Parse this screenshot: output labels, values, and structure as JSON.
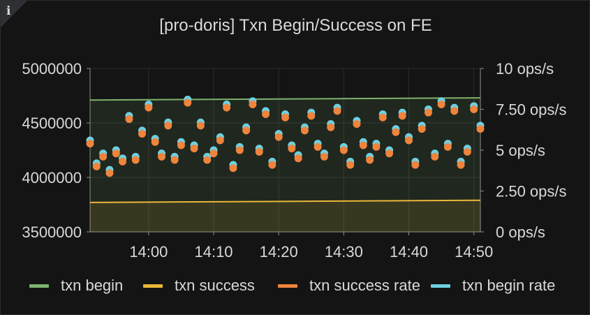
{
  "panel": {
    "title": "[pro-doris] Txn Begin/Success on FE",
    "info_icon": "info-icon"
  },
  "chart_data": {
    "type": "line",
    "title": "[pro-doris] Txn Begin/Success on FE",
    "x_ticks": [
      "14:00",
      "14:10",
      "14:20",
      "14:30",
      "14:40",
      "14:50"
    ],
    "x_range": [
      "13:51",
      "14:51"
    ],
    "y_left": {
      "ticks": [
        "5000000",
        "4500000",
        "4000000",
        "3500000"
      ],
      "range": [
        3500000,
        5000000
      ]
    },
    "y_right": {
      "ticks": [
        "10 ops/s",
        "7.50 ops/s",
        "5 ops/s",
        "2.50 ops/s",
        "0 ops/s"
      ],
      "range": [
        0,
        10
      ]
    },
    "grid": true,
    "legend_placement": "bottom",
    "series": [
      {
        "name": "txn begin",
        "axis": "left",
        "style": "line",
        "color": "#7eb26d",
        "x": [
          "13:51",
          "14:51"
        ],
        "values": [
          4710000,
          4730000
        ]
      },
      {
        "name": "txn success",
        "axis": "left",
        "style": "line",
        "color": "#eab839",
        "x": [
          "13:51",
          "14:51"
        ],
        "values": [
          3770000,
          3790000
        ]
      },
      {
        "name": "txn success rate",
        "axis": "right",
        "style": "points",
        "color": "#ef843c",
        "x": [
          "13:51",
          "13:52",
          "13:53",
          "13:54",
          "13:55",
          "13:56",
          "13:57",
          "13:58",
          "13:59",
          "14:00",
          "14:01",
          "14:02",
          "14:03",
          "14:04",
          "14:05",
          "14:06",
          "14:07",
          "14:08",
          "14:09",
          "14:10",
          "14:11",
          "14:12",
          "14:13",
          "14:14",
          "14:15",
          "14:16",
          "14:17",
          "14:18",
          "14:19",
          "14:20",
          "14:21",
          "14:22",
          "14:23",
          "14:24",
          "14:25",
          "14:26",
          "14:27",
          "14:28",
          "14:29",
          "14:30",
          "14:31",
          "14:32",
          "14:33",
          "14:34",
          "14:35",
          "14:36",
          "14:37",
          "14:38",
          "14:39",
          "14:40",
          "14:41",
          "14:42",
          "14:43",
          "14:44",
          "14:45",
          "14:46",
          "14:47",
          "14:48",
          "14:49",
          "14:50",
          "14:51"
        ],
        "values": [
          5.4,
          4.0,
          4.6,
          3.6,
          4.8,
          4.3,
          6.9,
          4.4,
          6.0,
          7.6,
          5.5,
          4.6,
          6.5,
          4.4,
          5.3,
          7.9,
          5.1,
          6.5,
          4.4,
          4.8,
          5.6,
          7.6,
          3.9,
          5.0,
          6.2,
          7.8,
          4.9,
          7.2,
          4.1,
          5.8,
          7.0,
          5.1,
          4.5,
          6.2,
          7.1,
          5.2,
          4.6,
          6.4,
          7.4,
          5.0,
          4.1,
          6.6,
          5.3,
          4.4,
          5.2,
          7.0,
          4.8,
          6.1,
          7.1,
          5.6,
          4.1,
          6.3,
          7.3,
          4.6,
          7.8,
          5.2,
          7.4,
          4.1,
          4.9,
          7.5,
          6.3
        ]
      },
      {
        "name": "txn begin rate",
        "axis": "right",
        "style": "points",
        "color": "#6ed0e0",
        "x": [
          "13:51",
          "13:52",
          "13:53",
          "13:54",
          "13:55",
          "13:56",
          "13:57",
          "13:58",
          "13:59",
          "14:00",
          "14:01",
          "14:02",
          "14:03",
          "14:04",
          "14:05",
          "14:06",
          "14:07",
          "14:08",
          "14:09",
          "14:10",
          "14:11",
          "14:12",
          "14:13",
          "14:14",
          "14:15",
          "14:16",
          "14:17",
          "14:18",
          "14:19",
          "14:20",
          "14:21",
          "14:22",
          "14:23",
          "14:24",
          "14:25",
          "14:26",
          "14:27",
          "14:28",
          "14:29",
          "14:30",
          "14:31",
          "14:32",
          "14:33",
          "14:34",
          "14:35",
          "14:36",
          "14:37",
          "14:38",
          "14:39",
          "14:40",
          "14:41",
          "14:42",
          "14:43",
          "14:44",
          "14:45",
          "14:46",
          "14:47",
          "14:48",
          "14:49",
          "14:50",
          "14:51"
        ],
        "values": [
          5.6,
          4.2,
          4.8,
          3.8,
          5.0,
          4.5,
          7.1,
          4.6,
          6.2,
          7.8,
          5.7,
          4.8,
          6.7,
          4.6,
          5.5,
          8.1,
          5.3,
          6.7,
          4.6,
          5.0,
          5.8,
          7.8,
          4.1,
          5.2,
          6.4,
          8.0,
          5.1,
          7.4,
          4.3,
          6.0,
          7.2,
          5.3,
          4.7,
          6.4,
          7.3,
          5.4,
          4.8,
          6.6,
          7.6,
          5.2,
          4.3,
          6.8,
          5.5,
          4.6,
          5.4,
          7.2,
          5.0,
          6.3,
          7.3,
          5.8,
          4.3,
          6.5,
          7.5,
          4.8,
          8.0,
          5.4,
          7.6,
          4.3,
          5.1,
          7.7,
          6.5
        ]
      }
    ]
  }
}
